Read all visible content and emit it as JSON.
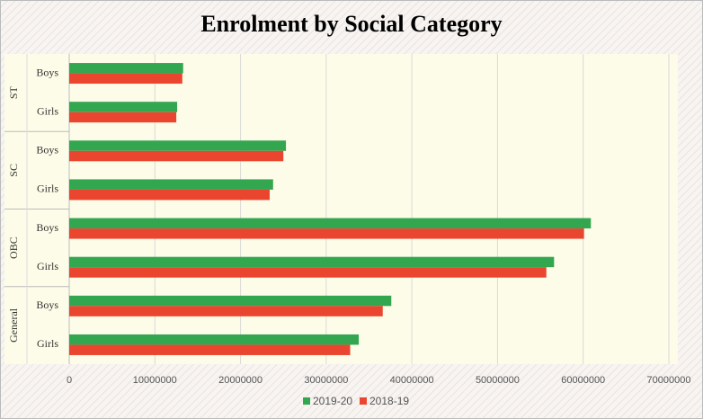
{
  "chart_data": {
    "type": "bar",
    "orientation": "horizontal",
    "title": "Enrolment by Social Category",
    "groups": [
      {
        "name": "ST",
        "categories": [
          "Boys",
          "Girls"
        ]
      },
      {
        "name": "SC",
        "categories": [
          "Boys",
          "Girls"
        ]
      },
      {
        "name": "OBC",
        "categories": [
          "Boys",
          "Girls"
        ]
      },
      {
        "name": "General",
        "categories": [
          "Boys",
          "Girls"
        ]
      }
    ],
    "series": [
      {
        "name": "2019-20",
        "color": "#33a650",
        "values": [
          13300000,
          12600000,
          25300000,
          23800000,
          60900000,
          56600000,
          37600000,
          33800000
        ]
      },
      {
        "name": "2018-19",
        "color": "#e9452f",
        "values": [
          13200000,
          12500000,
          25000000,
          23400000,
          60100000,
          55700000,
          36600000,
          32800000
        ]
      }
    ],
    "xlim": [
      0,
      70000000
    ],
    "xticks": [
      0,
      10000000,
      20000000,
      30000000,
      40000000,
      50000000,
      60000000,
      70000000
    ],
    "grid": true,
    "legend": "bottom"
  }
}
